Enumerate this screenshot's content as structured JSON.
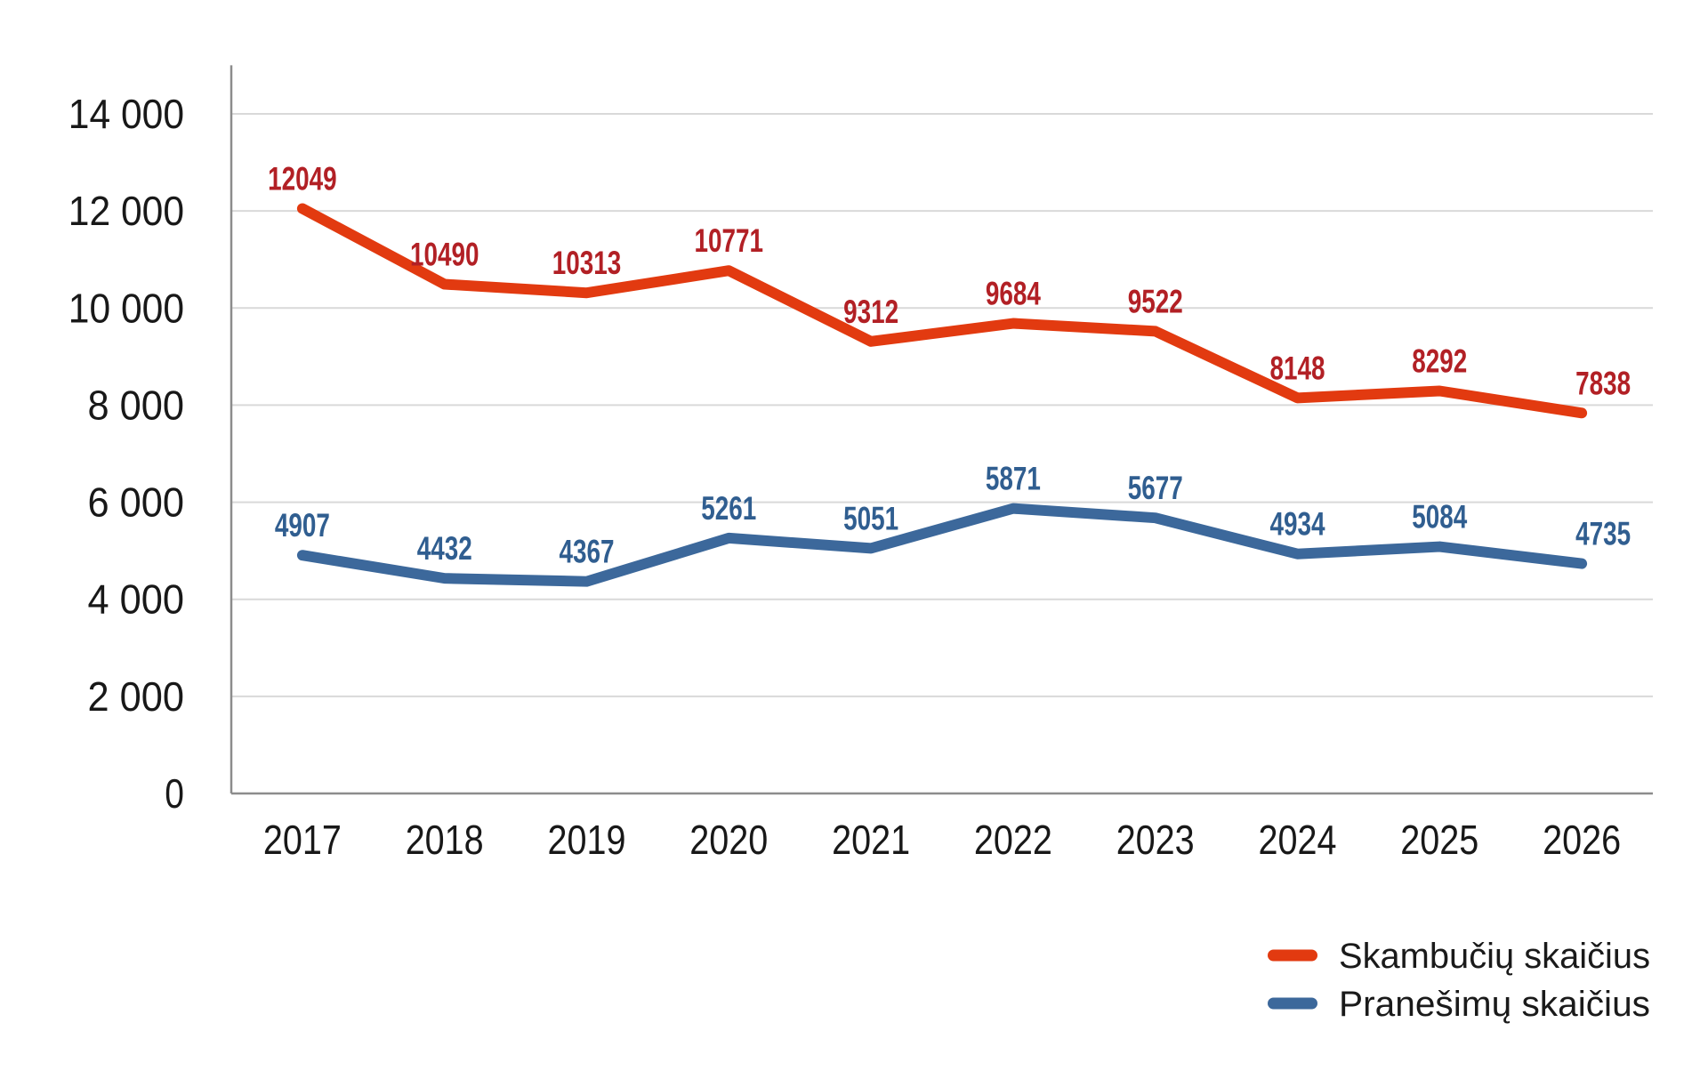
{
  "chart_data": {
    "type": "line",
    "categories": [
      "2017",
      "2018",
      "2019",
      "2020",
      "2021",
      "2022",
      "2023",
      "2024",
      "2025",
      "2026"
    ],
    "series": [
      {
        "name": "Skambučių skaičius",
        "key": "calls",
        "values": [
          12049,
          10490,
          10313,
          10771,
          9312,
          9684,
          9522,
          8148,
          8292,
          7838
        ],
        "line_color": "#E23A10",
        "label_color": "#B22025"
      },
      {
        "name": "Pranešimų skaičius",
        "key": "messages",
        "values": [
          4907,
          4432,
          4367,
          5261,
          5051,
          5871,
          5677,
          4934,
          5084,
          4735
        ],
        "line_color": "#3C689B",
        "label_color": "#305E90"
      }
    ],
    "title": "",
    "xlabel": "",
    "ylabel": "",
    "y_axis": {
      "min": 0,
      "max": 15000,
      "gridline_step": 2000,
      "tick_values": [
        0,
        2000,
        4000,
        6000,
        8000,
        10000,
        12000,
        14000
      ],
      "tick_labels": [
        "0",
        "2 000",
        "4 000",
        "6 000",
        "8 000",
        "10 000",
        "12 000",
        "14 000"
      ]
    },
    "grid": true,
    "data_labels": true,
    "legend_position": "bottom-right",
    "colors": {
      "gridline": "#D9D9D9",
      "axis": "#8C8C8C",
      "tick_text": "#181818",
      "background": "#FFFFFF"
    }
  }
}
